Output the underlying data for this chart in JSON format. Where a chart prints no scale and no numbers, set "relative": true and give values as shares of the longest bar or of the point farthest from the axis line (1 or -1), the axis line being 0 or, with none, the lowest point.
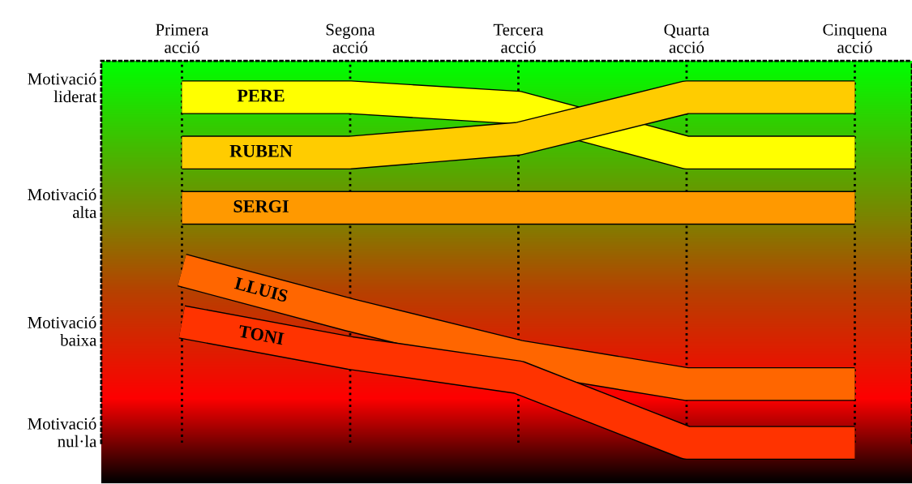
{
  "chart_data": {
    "type": "line",
    "relative": true,
    "categories": [
      "Primera\nacció",
      "Segona\nacció",
      "Tercera\nacció",
      "Quarta\nacció",
      "Cinquena\nacció"
    ],
    "annotations": [
      "Motivació\nliderat",
      "Motivació\nalta",
      "Motivació\nbaixa",
      "Motivació\nnul·la"
    ],
    "grid": "x",
    "line_style": "solid",
    "marker": "none",
    "legend": false,
    "series": [
      {
        "name": "PERE",
        "color": "#ffff00",
        "values": [
          1.0,
          1.0,
          0.97,
          0.84,
          0.84
        ]
      },
      {
        "name": "RUBEN",
        "color": "#ffcc00",
        "values": [
          0.84,
          0.84,
          0.88,
          1.0,
          1.0
        ]
      },
      {
        "name": "SERGI",
        "color": "#ff9900",
        "values": [
          0.68,
          0.68,
          0.68,
          0.68,
          0.68
        ]
      },
      {
        "name": "LLUIS",
        "color": "#ff6600",
        "values": [
          0.5,
          0.37,
          0.25,
          0.17,
          0.17
        ]
      },
      {
        "name": "TONI",
        "color": "#ff3300",
        "values": [
          0.35,
          0.26,
          0.19,
          0.0,
          0.0
        ]
      }
    ]
  }
}
